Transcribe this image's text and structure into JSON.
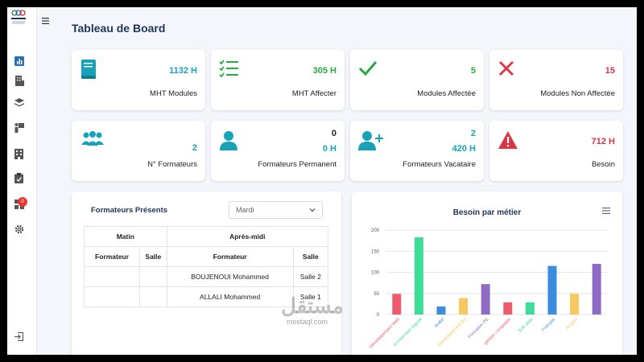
{
  "page": {
    "title": "Tableau de Board"
  },
  "sidebar": {
    "logo_text": "ISTPT",
    "badge_count": "0",
    "icons": [
      "chart-icon",
      "building-icon",
      "layers-icon",
      "teacher-icon",
      "office-icon",
      "clipboard-icon",
      "grid-icon",
      "gear-icon",
      "logout-icon"
    ]
  },
  "stats": [
    {
      "value": "1132 H",
      "label": "MHT Modules",
      "color": "#17a2b8",
      "icon": "book-icon"
    },
    {
      "value": "305 H",
      "label": "MHT Affecter",
      "color": "#28a745",
      "icon": "checklist-icon"
    },
    {
      "value": "5",
      "label": "Modules Affectée",
      "color": "#28a745",
      "icon": "check-icon"
    },
    {
      "value": "15",
      "label": "Modules Non Affectée",
      "color": "#dc3545",
      "icon": "x-icon"
    },
    {
      "value": "2",
      "label": "N° Formateurs",
      "color": "#17a2b8",
      "icon": "users-icon"
    },
    {
      "value": "0",
      "value2": "0 H",
      "label": "Formateurs Permanent",
      "color": "#17a2b8",
      "icon": "user-icon"
    },
    {
      "value": "2",
      "value2": "420 H",
      "label": "Formateurs Vacataire",
      "color": "#17a2b8",
      "icon": "user-plus-icon"
    },
    {
      "value": "712 H",
      "label": "Besoin",
      "color": "#dc3545",
      "icon": "warning-icon"
    }
  ],
  "presence": {
    "title": "Formateurs Présents",
    "day_select": "Mardi",
    "headers": [
      "Matin",
      "Après-midi"
    ],
    "subheaders": [
      "Formateur",
      "Salle",
      "Formateur",
      "Salle"
    ],
    "rows": [
      {
        "matin_formateur": "",
        "matin_salle": "",
        "am_formateur": "BOUJENOUI Mohammed",
        "am_salle": "Salle 2"
      },
      {
        "matin_formateur": "",
        "matin_salle": "",
        "am_formateur": "ALLALI Mohammed",
        "am_salle": "Salle 1"
      }
    ]
  },
  "chart_data": {
    "type": "bar",
    "title": "Besoin par métier",
    "categories": [
      "Développement Web",
      "Architecture logiciel",
      "Arabe",
      "Développement Sql",
      "Formation PE",
      "gestion comptable",
      "Soft skills",
      "Français",
      "Anglais",
      ""
    ],
    "values": [
      49,
      183,
      19,
      39,
      72,
      29,
      29,
      115,
      49,
      120
    ],
    "colors": [
      "#ef5b6e",
      "#3ddc97",
      "#3a8dde",
      "#f6c85f",
      "#8e6bc4",
      "#ef5b6e",
      "#3ddc97",
      "#3a8dde",
      "#f6c85f",
      "#8e6bc4"
    ],
    "ylim": [
      0,
      200
    ],
    "yticks": [
      0,
      50,
      100,
      150,
      200
    ]
  },
  "watermark": {
    "latin": "mostaql.com",
    "arabic": "مستقل"
  }
}
